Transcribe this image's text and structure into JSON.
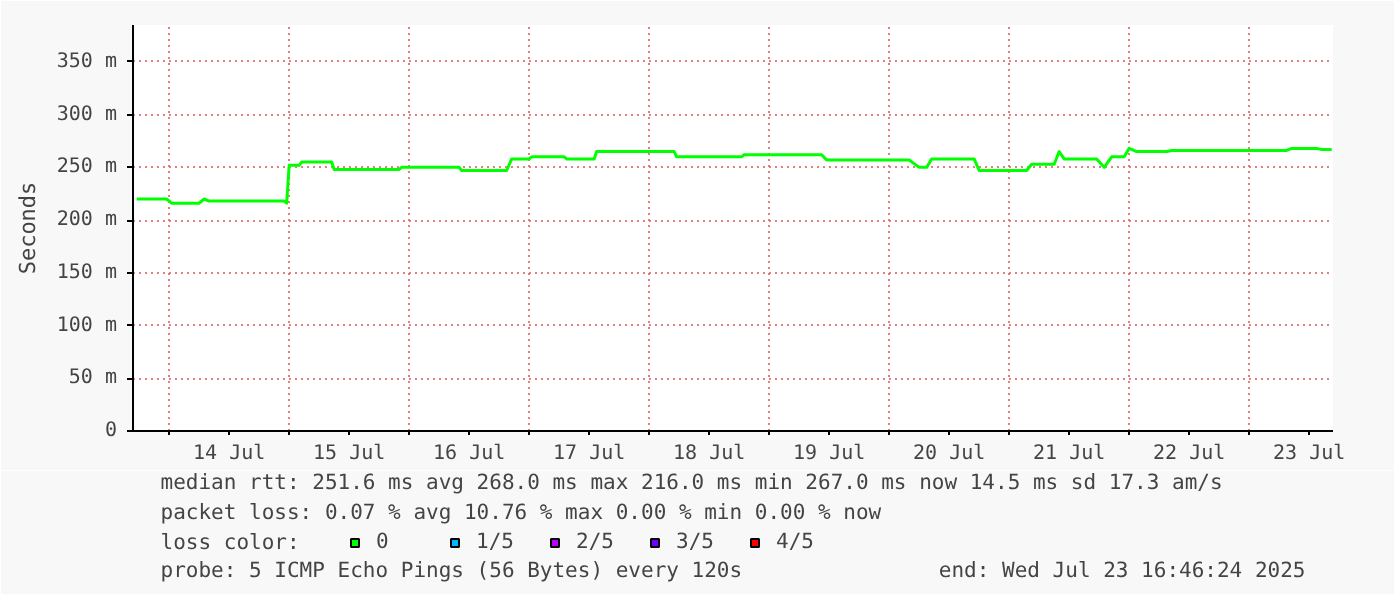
{
  "chart_data": {
    "type": "line",
    "ylabel": "Seconds",
    "x": [
      "2025-07-13T17:30",
      "2025-07-13T23:30",
      "2025-07-14T00:30",
      "2025-07-14T06:00",
      "2025-07-14T07:00",
      "2025-07-14T08:00",
      "2025-07-14T23:00",
      "2025-07-14T23:30",
      "2025-07-15T00:00",
      "2025-07-15T02:00",
      "2025-07-15T02:30",
      "2025-07-15T08:30",
      "2025-07-15T09:00",
      "2025-07-15T22:00",
      "2025-07-15T22:30",
      "2025-07-16T10:00",
      "2025-07-16T10:30",
      "2025-07-16T19:30",
      "2025-07-16T20:30",
      "2025-07-17T00:00",
      "2025-07-17T00:30",
      "2025-07-17T07:00",
      "2025-07-17T07:30",
      "2025-07-17T13:00",
      "2025-07-17T13:30",
      "2025-07-18T05:00",
      "2025-07-18T05:30",
      "2025-07-18T18:30",
      "2025-07-18T19:00",
      "2025-07-19T10:30",
      "2025-07-19T11:30",
      "2025-07-20T04:00",
      "2025-07-20T06:00",
      "2025-07-20T07:30",
      "2025-07-20T08:30",
      "2025-07-20T17:00",
      "2025-07-20T18:00",
      "2025-07-21T03:30",
      "2025-07-21T04:30",
      "2025-07-21T09:00",
      "2025-07-21T10:00",
      "2025-07-21T11:00",
      "2025-07-21T17:30",
      "2025-07-21T19:00",
      "2025-07-21T20:30",
      "2025-07-21T23:00",
      "2025-07-22T00:00",
      "2025-07-22T01:30",
      "2025-07-22T07:30",
      "2025-07-22T08:30",
      "2025-07-23T07:30",
      "2025-07-23T08:30",
      "2025-07-23T13:30",
      "2025-07-23T14:30",
      "2025-07-23T16:30"
    ],
    "series": [
      {
        "name": "0",
        "color": "#00ff00",
        "values": [
          220,
          220,
          216,
          216,
          220,
          218,
          218,
          216,
          252,
          252,
          255,
          255,
          248,
          248,
          250,
          250,
          247,
          247,
          258,
          258,
          260,
          260,
          258,
          258,
          265,
          265,
          260,
          260,
          262,
          262,
          257,
          257,
          250,
          250,
          258,
          258,
          247,
          247,
          253,
          253,
          265,
          258,
          258,
          250,
          260,
          260,
          268,
          265,
          265,
          266,
          266,
          268,
          268,
          267,
          267
        ]
      },
      {
        "name": "1/5",
        "color": "#00b8ff",
        "values": [
          null,
          null,
          null,
          null,
          null,
          null,
          null,
          null,
          null,
          null,
          null,
          null,
          null,
          null,
          null,
          null,
          null,
          null,
          null,
          null,
          null,
          null,
          null,
          null,
          null,
          null,
          null,
          null,
          null,
          null,
          null,
          null,
          null,
          null,
          null,
          null,
          null,
          null,
          null,
          null,
          null,
          null,
          null,
          null,
          null,
          null,
          null,
          null,
          null,
          null,
          null,
          null,
          null,
          null,
          null
        ]
      },
      {
        "name": "2/5",
        "color": "#bc00ff",
        "values": [
          null,
          null,
          null,
          null,
          null,
          null,
          null,
          null,
          null,
          null,
          null,
          null,
          null,
          null,
          null,
          null,
          null,
          null,
          null,
          null,
          null,
          null,
          null,
          null,
          null,
          null,
          null,
          null,
          null,
          null,
          null,
          null,
          null,
          null,
          null,
          null,
          null,
          null,
          null,
          null,
          null,
          null,
          null,
          null,
          null,
          null,
          null,
          null,
          null,
          null,
          null,
          null,
          null,
          null,
          null
        ]
      },
      {
        "name": "3/5",
        "color": "#7200ff",
        "values": [
          null,
          null,
          null,
          null,
          null,
          null,
          null,
          null,
          null,
          null,
          null,
          null,
          null,
          null,
          null,
          null,
          null,
          null,
          null,
          null,
          null,
          null,
          null,
          null,
          null,
          null,
          null,
          null,
          null,
          null,
          null,
          null,
          null,
          null,
          null,
          null,
          null,
          null,
          null,
          null,
          null,
          null,
          null,
          null,
          null,
          null,
          null,
          null,
          null,
          null,
          null,
          null,
          null,
          null,
          null
        ]
      },
      {
        "name": "4/5",
        "color": "#ff0000",
        "values": [
          null,
          null,
          null,
          null,
          null,
          null,
          null,
          null,
          null,
          null,
          null,
          null,
          null,
          null,
          null,
          null,
          null,
          null,
          null,
          null,
          null,
          null,
          null,
          null,
          null,
          null,
          null,
          null,
          null,
          null,
          null,
          null,
          null,
          null,
          null,
          null,
          null,
          null,
          null,
          null,
          null,
          null,
          null,
          null,
          null,
          null,
          null,
          null,
          null,
          null,
          null,
          null,
          null,
          null,
          null
        ]
      }
    ],
    "legend_title": "loss color:",
    "legend": "bottom",
    "xlim": [
      "2025-07-13T16:46",
      "2025-07-23T16:46"
    ],
    "xticks": [
      {
        "value": "2025-07-14T00:00",
        "label": null
      },
      {
        "value": "2025-07-14T12:00",
        "label": "14 Jul"
      },
      {
        "value": "2025-07-15T00:00",
        "label": null
      },
      {
        "value": "2025-07-15T12:00",
        "label": "15 Jul"
      },
      {
        "value": "2025-07-16T00:00",
        "label": null
      },
      {
        "value": "2025-07-16T12:00",
        "label": "16 Jul"
      },
      {
        "value": "2025-07-17T00:00",
        "label": null
      },
      {
        "value": "2025-07-17T12:00",
        "label": "17 Jul"
      },
      {
        "value": "2025-07-18T00:00",
        "label": null
      },
      {
        "value": "2025-07-18T12:00",
        "label": "18 Jul"
      },
      {
        "value": "2025-07-19T00:00",
        "label": null
      },
      {
        "value": "2025-07-19T12:00",
        "label": "19 Jul"
      },
      {
        "value": "2025-07-20T00:00",
        "label": null
      },
      {
        "value": "2025-07-20T12:00",
        "label": "20 Jul"
      },
      {
        "value": "2025-07-21T00:00",
        "label": null
      },
      {
        "value": "2025-07-21T12:00",
        "label": "21 Jul"
      },
      {
        "value": "2025-07-22T00:00",
        "label": null
      },
      {
        "value": "2025-07-22T12:00",
        "label": "22 Jul"
      },
      {
        "value": "2025-07-23T00:00",
        "label": null
      },
      {
        "value": "2025-07-23T12:00",
        "label": "23 Jul"
      }
    ],
    "ylim": [
      0,
      385
    ],
    "yticks": [
      0,
      {
        "value": 50,
        "label": "50 m"
      },
      {
        "value": 100,
        "label": "100 m"
      },
      {
        "value": 150,
        "label": "150 m"
      },
      {
        "value": 200,
        "label": "200 m"
      },
      {
        "value": 250,
        "label": "250 m"
      },
      {
        "value": 300,
        "label": "300 m"
      },
      {
        "value": 350,
        "label": "350 m"
      }
    ],
    "grid": true,
    "marker": "none",
    "line_style": "solid",
    "annotations": [
      "median rtt:  251.6 ms avg  268.0 ms max  216.0 ms min  267.0 ms now  14.5 ms sd  17.3   am/s",
      "packet loss: 0.07 % avg  10.76 % max  0.00 % min  0.00 % now",
      "probe:       5 ICMP Echo Pings (56 Bytes) every 120s",
      "end: Wed Jul 23 16:46:24 2025"
    ]
  }
}
